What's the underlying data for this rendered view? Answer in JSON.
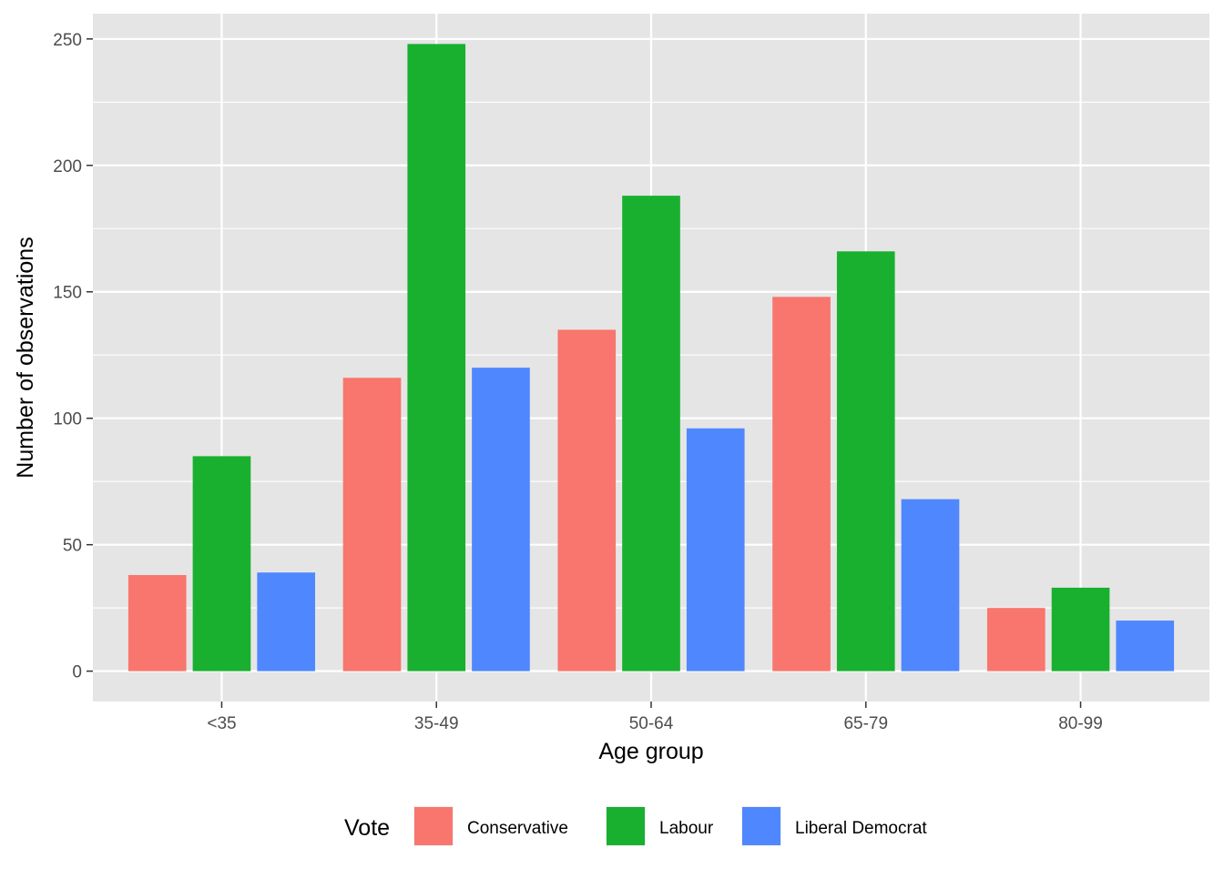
{
  "chart_data": {
    "type": "bar",
    "title": "",
    "xlabel": "Age group",
    "ylabel": "Number of observations",
    "categories": [
      "<35",
      "35-49",
      "50-64",
      "65-79",
      "80-99"
    ],
    "series": [
      {
        "name": "Conservative",
        "color": "#F8766D",
        "values": [
          38,
          116,
          135,
          148,
          25
        ]
      },
      {
        "name": "Labour",
        "color": "#19B02F",
        "values": [
          85,
          248,
          188,
          166,
          33
        ]
      },
      {
        "name": "Liberal Democrat",
        "color": "#4F87FF",
        "values": [
          39,
          120,
          96,
          68,
          20
        ]
      }
    ],
    "ylim": [
      -12,
      260
    ],
    "yticks": [
      0,
      50,
      100,
      150,
      200,
      250
    ],
    "grid": true,
    "panel_color": "#E5E5E5",
    "legend": {
      "title": "Vote",
      "placement": "bottom"
    }
  }
}
